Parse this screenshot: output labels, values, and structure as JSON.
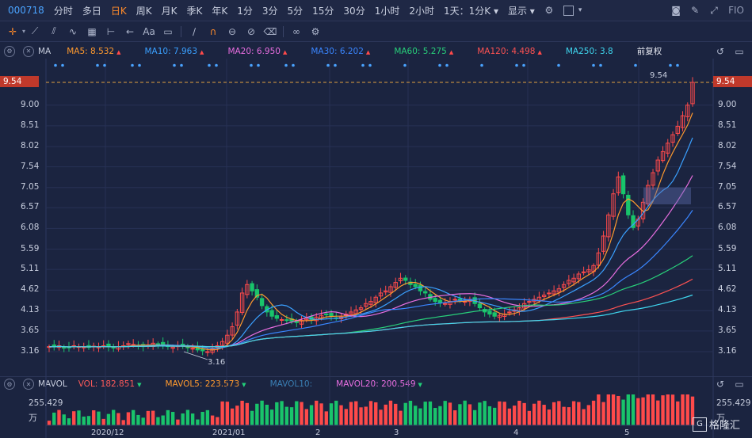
{
  "topbar": {
    "code": "000718",
    "periods": [
      "分时",
      "多日",
      "日K",
      "周K",
      "月K",
      "季K",
      "年K",
      "1分",
      "3分",
      "5分",
      "15分",
      "30分",
      "1小时",
      "2小时"
    ],
    "active_period": "日K",
    "interval_select": "1天：1分K",
    "display_select": "显示",
    "fio_label": "FIO"
  },
  "toolbar": {
    "text_tool": "Aa"
  },
  "ma_legend": {
    "name": "MA",
    "items": [
      {
        "label": "MA5: 8.532",
        "color": "#ff9a2e",
        "dir": "up"
      },
      {
        "label": "MA10: 7.963",
        "color": "#3aa0ff",
        "dir": "up"
      },
      {
        "label": "MA20: 6.950",
        "color": "#e86ee0",
        "dir": "up"
      },
      {
        "label": "MA30: 6.202",
        "color": "#3a86ff",
        "dir": "up"
      },
      {
        "label": "MA60: 5.275",
        "color": "#28d07a",
        "dir": "up"
      },
      {
        "label": "MA120: 4.498",
        "color": "#ff5252",
        "dir": "up"
      },
      {
        "label": "MA250: 3.8",
        "color": "#3fd8f0",
        "dir": ""
      }
    ],
    "adjust": "前复权"
  },
  "vol_legend": {
    "name": "MAVOL",
    "items": [
      {
        "label": "VOL: 182.851",
        "color": "#ff5a5a",
        "dir": "dn"
      },
      {
        "label": "MAVOL5: 223.573",
        "color": "#ff9a2e",
        "dir": "dn"
      },
      {
        "label": "MAVOL10:",
        "color": "#3a7fb4",
        "dir": ""
      },
      {
        "label": "MAVOL20: 200.549",
        "color": "#e86ee0",
        "dir": "dn"
      }
    ]
  },
  "price_axis": {
    "ticks": [
      "9.00",
      "8.51",
      "8.02",
      "7.54",
      "7.05",
      "6.57",
      "6.08",
      "5.59",
      "5.11",
      "4.62",
      "4.13",
      "3.65",
      "3.16"
    ],
    "current": "9.54"
  },
  "volume_axis": {
    "value": "255.429",
    "unit": "万"
  },
  "annotations": {
    "high": "9.54",
    "low": "3.16"
  },
  "x_labels": [
    "2020/12",
    "2021/01",
    "2",
    "3",
    "4",
    "5"
  ],
  "watermark": "格隆汇",
  "colors": {
    "up": "#ff4a4a",
    "down": "#19c46b",
    "background": "#1b2440"
  },
  "chart_data": {
    "type": "candlestick",
    "ylim": [
      2.9,
      9.7
    ],
    "x_labels": [
      "2020/12",
      "2021/01",
      "2",
      "3",
      "4",
      "5"
    ],
    "key_levels": {
      "last_close": 9.54,
      "period_low": 3.16
    },
    "ma": {
      "MA5": 8.532,
      "MA10": 7.963,
      "MA20": 6.95,
      "MA30": 6.202,
      "MA60": 5.275,
      "MA120": 4.498,
      "MA250": 3.8
    },
    "volume": {
      "VOL": 182.851,
      "MAVOL5": 223.573,
      "MAVOL20": 200.549,
      "max": 255.429,
      "unit": "万"
    },
    "close_path": [
      3.28,
      3.27,
      3.3,
      3.26,
      3.25,
      3.3,
      3.28,
      3.27,
      3.26,
      3.29,
      3.28,
      3.3,
      3.27,
      3.26,
      3.28,
      3.3,
      3.35,
      3.33,
      3.3,
      3.28,
      3.32,
      3.36,
      3.34,
      3.3,
      3.28,
      3.27,
      3.3,
      3.29,
      3.26,
      3.24,
      3.2,
      3.18,
      3.16,
      3.22,
      3.3,
      3.4,
      3.55,
      3.75,
      4.1,
      4.55,
      4.75,
      4.6,
      4.45,
      4.25,
      4.1,
      4.0,
      3.95,
      3.92,
      3.9,
      3.88,
      3.85,
      3.9,
      3.95,
      3.92,
      3.98,
      4.02,
      4.05,
      4.0,
      3.95,
      3.98,
      4.05,
      4.1,
      4.15,
      4.2,
      4.3,
      4.35,
      4.45,
      4.55,
      4.6,
      4.7,
      4.8,
      4.9,
      4.85,
      4.75,
      4.7,
      4.6,
      4.55,
      4.4,
      4.35,
      4.32,
      4.3,
      4.35,
      4.4,
      4.38,
      4.35,
      4.4,
      4.3,
      4.2,
      4.1,
      4.05,
      4.0,
      4.02,
      4.05,
      4.1,
      4.15,
      4.2,
      4.3,
      4.35,
      4.4,
      4.45,
      4.5,
      4.55,
      4.6,
      4.65,
      4.75,
      4.85,
      4.9,
      5.0,
      5.05,
      5.1,
      5.2,
      5.5,
      5.9,
      6.4,
      6.9,
      7.3,
      6.9,
      6.4,
      6.1,
      6.3,
      6.7,
      7.1,
      7.4,
      7.7,
      7.9,
      8.1,
      8.3,
      8.5,
      8.75,
      9.0,
      9.54
    ]
  }
}
